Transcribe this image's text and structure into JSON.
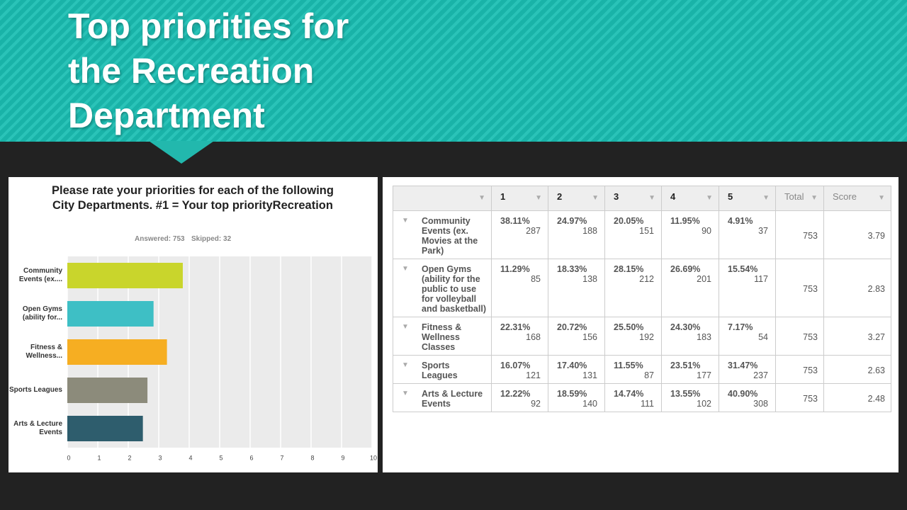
{
  "slide_title": "Top priorities for the Recreation Department",
  "chart_data": {
    "type": "hbar",
    "title": "Please rate your priorities for each of the following City Departments. #1 = Your top priorityRecreation",
    "answered": "Answered: 753",
    "skipped": "Skipped: 32",
    "categories": [
      "Community Events (ex....",
      "Open Gyms (ability for...",
      "Fitness & Wellness...",
      "Sports Leagues",
      "Arts & Lecture Events"
    ],
    "values": [
      3.79,
      2.83,
      3.27,
      2.63,
      2.48
    ],
    "colors": [
      "#c9d52c",
      "#3ebfc5",
      "#f6ae22",
      "#8c8b7b",
      "#2e5d6d"
    ],
    "xlim": [
      0,
      10
    ],
    "xticks": [
      0,
      1,
      2,
      3,
      4,
      5,
      6,
      7,
      8,
      9,
      10
    ],
    "grid": true
  },
  "table": {
    "header": [
      "1",
      "2",
      "3",
      "4",
      "5",
      "Total",
      "Score"
    ],
    "rows": [
      {
        "label": "Community Events (ex. Movies at the Park)",
        "cells": [
          [
            "38.11%",
            287
          ],
          [
            "24.97%",
            188
          ],
          [
            "20.05%",
            151
          ],
          [
            "11.95%",
            90
          ],
          [
            "4.91%",
            37
          ]
        ],
        "total": 753,
        "score": 3.79
      },
      {
        "label": "Open Gyms (ability for the public to use for volleyball and basketball)",
        "cells": [
          [
            "11.29%",
            85
          ],
          [
            "18.33%",
            138
          ],
          [
            "28.15%",
            212
          ],
          [
            "26.69%",
            201
          ],
          [
            "15.54%",
            117
          ]
        ],
        "total": 753,
        "score": 2.83
      },
      {
        "label": "Fitness & Wellness Classes",
        "cells": [
          [
            "22.31%",
            168
          ],
          [
            "20.72%",
            156
          ],
          [
            "25.50%",
            192
          ],
          [
            "24.30%",
            183
          ],
          [
            "7.17%",
            54
          ]
        ],
        "total": 753,
        "score": 3.27
      },
      {
        "label": "Sports Leagues",
        "cells": [
          [
            "16.07%",
            121
          ],
          [
            "17.40%",
            131
          ],
          [
            "11.55%",
            87
          ],
          [
            "23.51%",
            177
          ],
          [
            "31.47%",
            237
          ]
        ],
        "total": 753,
        "score": 2.63
      },
      {
        "label": "Arts & Lecture Events",
        "cells": [
          [
            "12.22%",
            92
          ],
          [
            "18.59%",
            140
          ],
          [
            "14.74%",
            111
          ],
          [
            "13.55%",
            102
          ],
          [
            "40.90%",
            308
          ]
        ],
        "total": 753,
        "score": 2.48
      }
    ]
  }
}
